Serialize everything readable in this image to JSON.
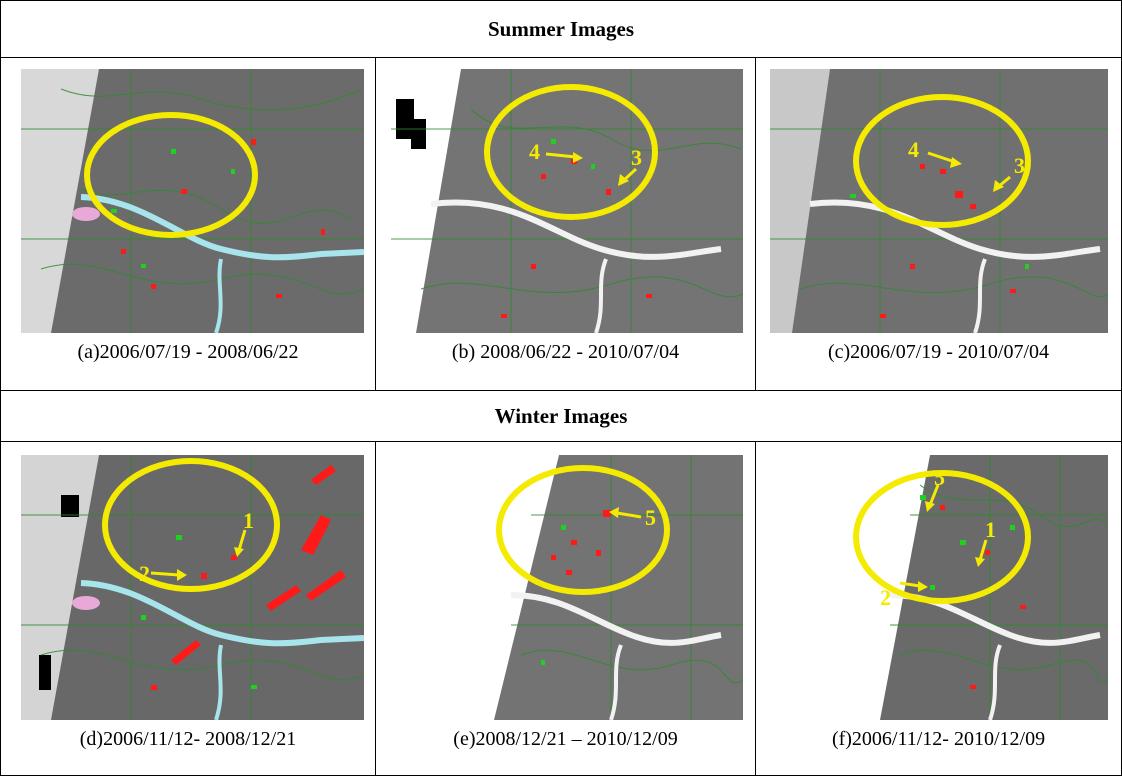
{
  "sections": {
    "summer": {
      "title": "Summer Images",
      "panels": [
        {
          "caption": "(a)2006/07/19 - 2008/06/22",
          "markers": []
        },
        {
          "caption": "(b) 2008/06/22 - 2010/07/04",
          "markers": [
            "4",
            "3"
          ]
        },
        {
          "caption": "(c)2006/07/19 - 2010/07/04",
          "markers": [
            "4",
            "3"
          ]
        }
      ]
    },
    "winter": {
      "title": "Winter Images",
      "panels": [
        {
          "caption": "(d)2006/11/12- 2008/12/21",
          "markers": [
            "1",
            "2"
          ]
        },
        {
          "caption": "(e)2008/12/21 – 2010/12/09",
          "markers": [
            "5"
          ]
        },
        {
          "caption": "(f)2006/11/12- 2010/12/09",
          "markers": [
            "5",
            "1",
            "2"
          ]
        }
      ]
    }
  },
  "colors": {
    "border": "#000000",
    "highlight_circle": "#f5eb00",
    "increase": "#ff1a1a",
    "decrease": "#1fd11f",
    "river": "#a8e4ec",
    "image_bg": "#6b6b6b"
  }
}
